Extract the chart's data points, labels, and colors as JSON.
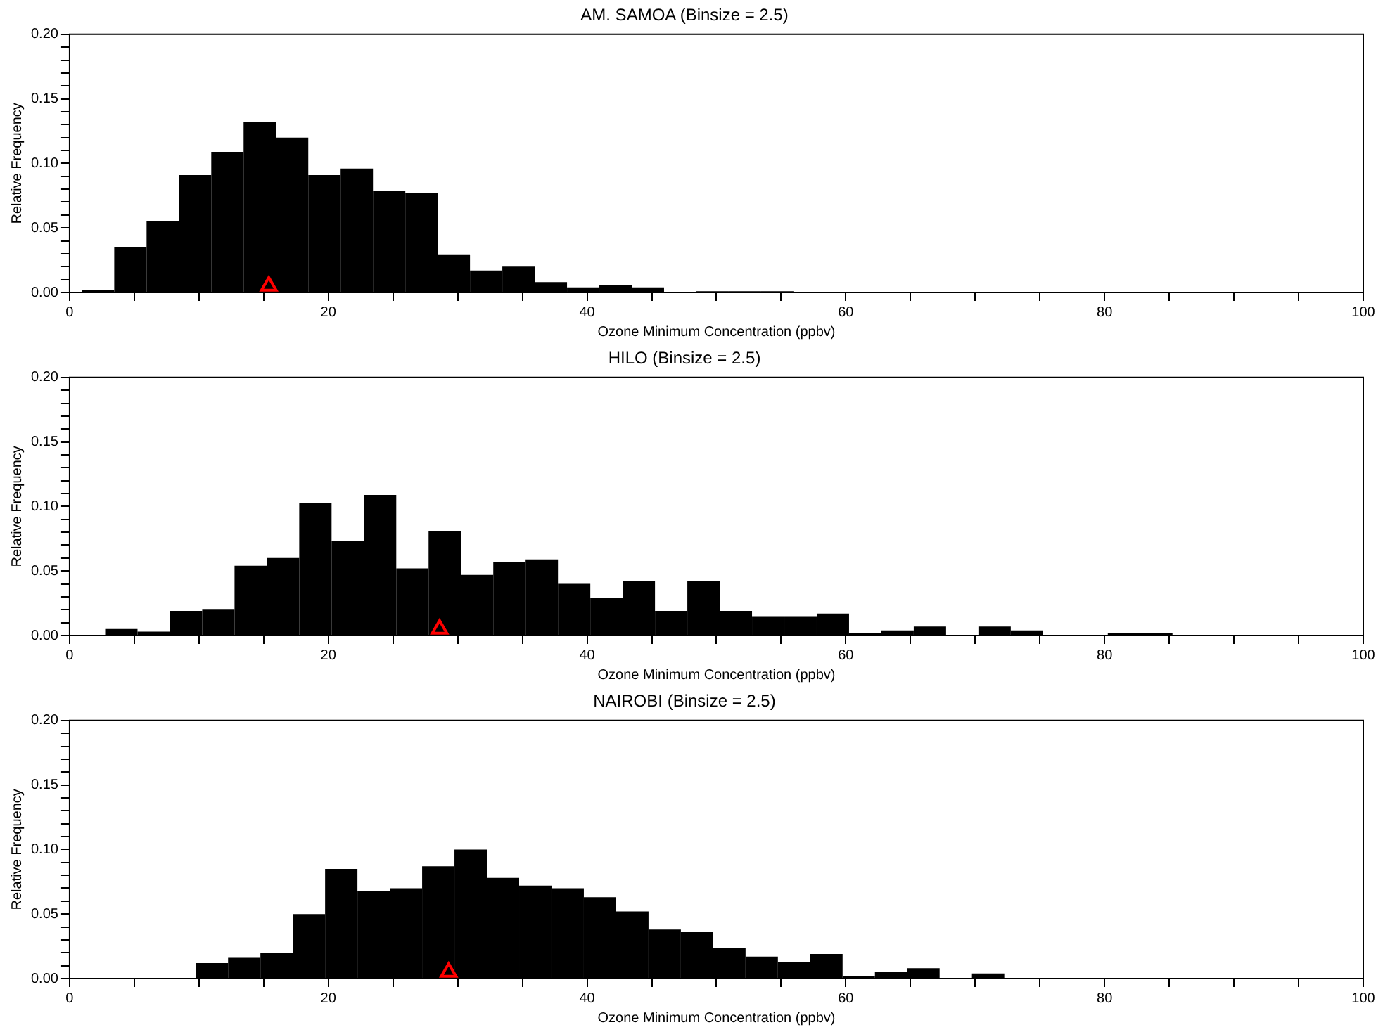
{
  "chart_data": [
    {
      "type": "histogram",
      "title": "AM. SAMOA (Binsize = 2.5)",
      "xlabel": "Ozone Minimum Concentration (ppbv)",
      "ylabel": "Relative Frequency",
      "color": "#000000",
      "bins": [
        0.95,
        3.45,
        5.95,
        8.45,
        10.95,
        13.45,
        15.95,
        18.45,
        20.95,
        23.45,
        25.95,
        28.45,
        30.95,
        33.45,
        35.95,
        38.45,
        40.95,
        43.45,
        45.95,
        48.45,
        50.95,
        53.45,
        55.95
      ],
      "values": [
        0.002,
        0.035,
        0.055,
        0.091,
        0.109,
        0.132,
        0.12,
        0.091,
        0.096,
        0.079,
        0.077,
        0.029,
        0.017,
        0.02,
        0.008,
        0.004,
        0.006,
        0.004,
        0.0,
        0.001,
        0.001,
        0.001
      ],
      "series": [
        {
          "type": "scatter",
          "x": [
            15.4
          ],
          "values": [
            0.005
          ],
          "color": "#ff0000",
          "marker": "triangle"
        }
      ],
      "xlim": [
        0,
        100
      ],
      "ylim": [
        0,
        0.2
      ],
      "xticks": [
        0,
        {
          "value": 5,
          "label": null
        },
        {
          "value": 10,
          "label": null
        },
        {
          "value": 15,
          "label": null
        },
        20,
        {
          "value": 25,
          "label": null
        },
        {
          "value": 30,
          "label": null
        },
        {
          "value": 35,
          "label": null
        },
        40,
        {
          "value": 45,
          "label": null
        },
        {
          "value": 50,
          "label": null
        },
        {
          "value": 55,
          "label": null
        },
        60,
        {
          "value": 65,
          "label": null
        },
        {
          "value": 70,
          "label": null
        },
        {
          "value": 75,
          "label": null
        },
        80,
        {
          "value": 85,
          "label": null
        },
        {
          "value": 90,
          "label": null
        },
        {
          "value": 95,
          "label": null
        },
        100
      ],
      "yticks": [
        {
          "value": 0,
          "label": "0.00"
        },
        {
          "value": 0.01,
          "label": null
        },
        {
          "value": 0.02,
          "label": null
        },
        {
          "value": 0.03,
          "label": null
        },
        {
          "value": 0.04,
          "label": null
        },
        {
          "value": 0.05,
          "label": "0.05"
        },
        {
          "value": 0.06,
          "label": null
        },
        {
          "value": 0.07,
          "label": null
        },
        {
          "value": 0.08,
          "label": null
        },
        {
          "value": 0.09,
          "label": null
        },
        {
          "value": 0.1,
          "label": "0.10"
        },
        {
          "value": 0.11,
          "label": null
        },
        {
          "value": 0.12,
          "label": null
        },
        {
          "value": 0.13,
          "label": null
        },
        {
          "value": 0.14,
          "label": null
        },
        {
          "value": 0.15,
          "label": "0.15"
        },
        {
          "value": 0.16,
          "label": null
        },
        {
          "value": 0.17,
          "label": null
        },
        {
          "value": 0.18,
          "label": null
        },
        {
          "value": 0.19,
          "label": null
        },
        {
          "value": 0.2,
          "label": "0.20"
        }
      ]
    },
    {
      "type": "histogram",
      "title": "HILO (Binsize = 2.5)",
      "xlabel": "Ozone Minimum Concentration (ppbv)",
      "ylabel": "Relative Frequency",
      "color": "#000000",
      "bins": [
        2.75,
        5.25,
        7.75,
        10.25,
        12.75,
        15.25,
        17.75,
        20.25,
        22.75,
        25.25,
        27.75,
        30.25,
        32.75,
        35.25,
        37.75,
        40.25,
        42.75,
        45.25,
        47.75,
        50.25,
        52.75,
        55.25,
        57.75,
        60.25,
        62.75,
        65.25,
        67.75,
        70.25,
        72.75,
        75.25,
        77.75,
        80.25,
        82.75,
        85.25
      ],
      "values": [
        0.005,
        0.003,
        0.019,
        0.02,
        0.054,
        0.06,
        0.103,
        0.073,
        0.109,
        0.052,
        0.081,
        0.047,
        0.057,
        0.059,
        0.04,
        0.029,
        0.042,
        0.019,
        0.042,
        0.019,
        0.015,
        0.015,
        0.017,
        0.002,
        0.004,
        0.007,
        0.0,
        0.007,
        0.004,
        0.0,
        0.0,
        0.002,
        0.002
      ],
      "series": [
        {
          "type": "scatter",
          "x": [
            28.6
          ],
          "values": [
            0.005
          ],
          "color": "#ff0000",
          "marker": "triangle"
        }
      ],
      "xlim": [
        0,
        100
      ],
      "ylim": [
        0,
        0.2
      ],
      "xticks": [
        0,
        {
          "value": 5,
          "label": null
        },
        {
          "value": 10,
          "label": null
        },
        {
          "value": 15,
          "label": null
        },
        20,
        {
          "value": 25,
          "label": null
        },
        {
          "value": 30,
          "label": null
        },
        {
          "value": 35,
          "label": null
        },
        40,
        {
          "value": 45,
          "label": null
        },
        {
          "value": 50,
          "label": null
        },
        {
          "value": 55,
          "label": null
        },
        60,
        {
          "value": 65,
          "label": null
        },
        {
          "value": 70,
          "label": null
        },
        {
          "value": 75,
          "label": null
        },
        80,
        {
          "value": 85,
          "label": null
        },
        {
          "value": 90,
          "label": null
        },
        {
          "value": 95,
          "label": null
        },
        100
      ],
      "yticks": [
        {
          "value": 0,
          "label": "0.00"
        },
        {
          "value": 0.01,
          "label": null
        },
        {
          "value": 0.02,
          "label": null
        },
        {
          "value": 0.03,
          "label": null
        },
        {
          "value": 0.04,
          "label": null
        },
        {
          "value": 0.05,
          "label": "0.05"
        },
        {
          "value": 0.06,
          "label": null
        },
        {
          "value": 0.07,
          "label": null
        },
        {
          "value": 0.08,
          "label": null
        },
        {
          "value": 0.09,
          "label": null
        },
        {
          "value": 0.1,
          "label": "0.10"
        },
        {
          "value": 0.11,
          "label": null
        },
        {
          "value": 0.12,
          "label": null
        },
        {
          "value": 0.13,
          "label": null
        },
        {
          "value": 0.14,
          "label": null
        },
        {
          "value": 0.15,
          "label": "0.15"
        },
        {
          "value": 0.16,
          "label": null
        },
        {
          "value": 0.17,
          "label": null
        },
        {
          "value": 0.18,
          "label": null
        },
        {
          "value": 0.19,
          "label": null
        },
        {
          "value": 0.2,
          "label": "0.20"
        }
      ]
    },
    {
      "type": "histogram",
      "title": "NAIROBI (Binsize = 2.5)",
      "xlabel": "Ozone Minimum Concentration (ppbv)",
      "ylabel": "Relative Frequency",
      "color": "#000000",
      "bins": [
        9.75,
        12.25,
        14.75,
        17.25,
        19.75,
        22.25,
        24.75,
        27.25,
        29.75,
        32.25,
        34.75,
        37.25,
        39.75,
        42.25,
        44.75,
        47.25,
        49.75,
        52.25,
        54.75,
        57.25,
        59.75,
        62.25,
        64.75,
        67.25,
        69.75,
        72.25
      ],
      "values": [
        0.012,
        0.016,
        0.02,
        0.05,
        0.085,
        0.068,
        0.07,
        0.087,
        0.1,
        0.078,
        0.072,
        0.07,
        0.063,
        0.052,
        0.038,
        0.036,
        0.024,
        0.017,
        0.013,
        0.019,
        0.002,
        0.005,
        0.008,
        0.0,
        0.004
      ],
      "series": [
        {
          "type": "scatter",
          "x": [
            29.3
          ],
          "values": [
            0.005
          ],
          "color": "#ff0000",
          "marker": "triangle"
        }
      ],
      "xlim": [
        0,
        100
      ],
      "ylim": [
        0,
        0.2
      ],
      "xticks": [
        0,
        {
          "value": 5,
          "label": null
        },
        {
          "value": 10,
          "label": null
        },
        {
          "value": 15,
          "label": null
        },
        20,
        {
          "value": 25,
          "label": null
        },
        {
          "value": 30,
          "label": null
        },
        {
          "value": 35,
          "label": null
        },
        40,
        {
          "value": 45,
          "label": null
        },
        {
          "value": 50,
          "label": null
        },
        {
          "value": 55,
          "label": null
        },
        60,
        {
          "value": 65,
          "label": null
        },
        {
          "value": 70,
          "label": null
        },
        {
          "value": 75,
          "label": null
        },
        80,
        {
          "value": 85,
          "label": null
        },
        {
          "value": 90,
          "label": null
        },
        {
          "value": 95,
          "label": null
        },
        100
      ],
      "yticks": [
        {
          "value": 0,
          "label": "0.00"
        },
        {
          "value": 0.01,
          "label": null
        },
        {
          "value": 0.02,
          "label": null
        },
        {
          "value": 0.03,
          "label": null
        },
        {
          "value": 0.04,
          "label": null
        },
        {
          "value": 0.05,
          "label": "0.05"
        },
        {
          "value": 0.06,
          "label": null
        },
        {
          "value": 0.07,
          "label": null
        },
        {
          "value": 0.08,
          "label": null
        },
        {
          "value": 0.09,
          "label": null
        },
        {
          "value": 0.1,
          "label": "0.10"
        },
        {
          "value": 0.11,
          "label": null
        },
        {
          "value": 0.12,
          "label": null
        },
        {
          "value": 0.13,
          "label": null
        },
        {
          "value": 0.14,
          "label": null
        },
        {
          "value": 0.15,
          "label": "0.15"
        },
        {
          "value": 0.16,
          "label": null
        },
        {
          "value": 0.17,
          "label": null
        },
        {
          "value": 0.18,
          "label": null
        },
        {
          "value": 0.19,
          "label": null
        },
        {
          "value": 0.2,
          "label": "0.20"
        }
      ]
    }
  ]
}
